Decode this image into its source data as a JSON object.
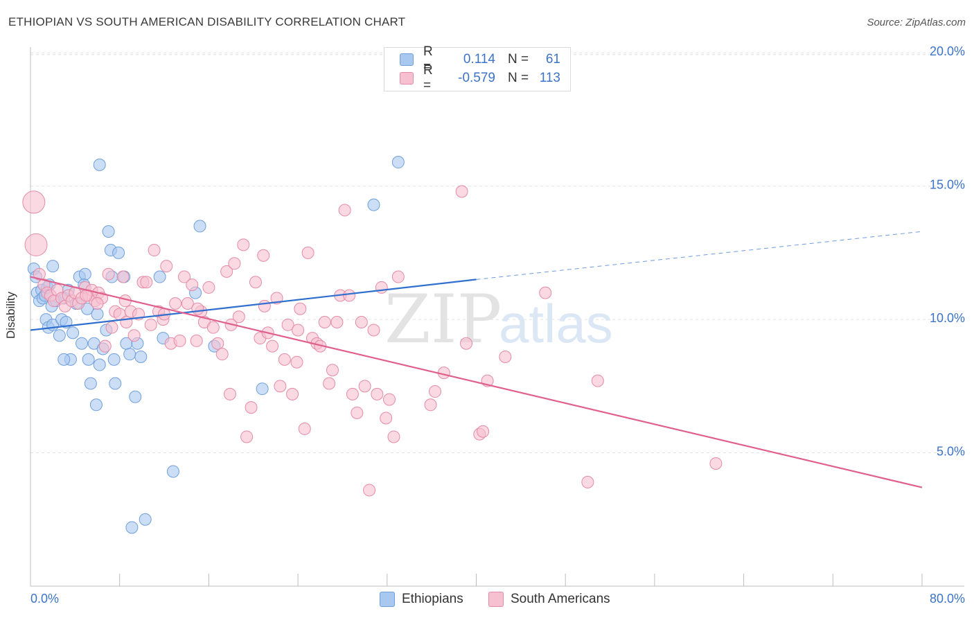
{
  "header": {
    "title": "ETHIOPIAN VS SOUTH AMERICAN DISABILITY CORRELATION CHART",
    "source": "Source: ZipAtlas.com"
  },
  "watermark": {
    "zip": "ZIP",
    "atlas": "atlas"
  },
  "legend": {
    "rows": [
      {
        "r_label": "R =",
        "r_value": "0.114",
        "n_label": "N =",
        "n_value": "61",
        "color": "#a9c8f0",
        "border": "#6e9fdc"
      },
      {
        "r_label": "R =",
        "r_value": "-0.579",
        "n_label": "N =",
        "n_value": "113",
        "color": "#f7c0d0",
        "border": "#e58aa6"
      }
    ]
  },
  "bottom_legend": {
    "items": [
      {
        "label": "Ethiopians",
        "color": "#a9c8f0",
        "border": "#6e9fdc"
      },
      {
        "label": "South Americans",
        "color": "#f7c0d0",
        "border": "#e58aa6"
      }
    ]
  },
  "chart_data": {
    "type": "scatter",
    "title": "ETHIOPIAN VS SOUTH AMERICAN DISABILITY CORRELATION CHART",
    "xlabel": "",
    "ylabel": "Disability",
    "xlim": [
      0,
      80
    ],
    "ylim": [
      0,
      20.5
    ],
    "x_tick_labels": [
      "0.0%",
      "80.0%"
    ],
    "y_ticks": [
      5,
      10,
      15,
      20
    ],
    "y_tick_labels": [
      "5.0%",
      "10.0%",
      "15.0%",
      "20.0%"
    ],
    "grid": true,
    "series": [
      {
        "name": "Ethiopians",
        "color": "#6e9fdc",
        "fill": "#a9c8f0",
        "trend": {
          "x0": 0,
          "y0": 9.6,
          "x1": 40,
          "y1": 11.5,
          "dash_to": 80,
          "dash_y": 13.3,
          "color": "#2f6fd0"
        },
        "points": [
          [
            0.3,
            11.9
          ],
          [
            0.5,
            11.6
          ],
          [
            0.6,
            11.0
          ],
          [
            0.8,
            10.7
          ],
          [
            1.0,
            11.1
          ],
          [
            1.1,
            10.8
          ],
          [
            1.3,
            10.9
          ],
          [
            1.5,
            11.2
          ],
          [
            1.7,
            11.3
          ],
          [
            1.9,
            10.5
          ],
          [
            1.4,
            10.0
          ],
          [
            1.6,
            9.7
          ],
          [
            2.0,
            9.8
          ],
          [
            2.3,
            10.7
          ],
          [
            2.6,
            9.4
          ],
          [
            2.8,
            10.0
          ],
          [
            3.0,
            10.8
          ],
          [
            3.2,
            9.9
          ],
          [
            3.4,
            11.1
          ],
          [
            3.6,
            8.5
          ],
          [
            3.8,
            9.5
          ],
          [
            4.1,
            10.6
          ],
          [
            4.4,
            11.6
          ],
          [
            4.6,
            9.1
          ],
          [
            4.9,
            11.7
          ],
          [
            5.1,
            10.4
          ],
          [
            5.4,
            7.6
          ],
          [
            5.7,
            9.1
          ],
          [
            5.9,
            6.8
          ],
          [
            6.2,
            8.3
          ],
          [
            6.5,
            8.9
          ],
          [
            6.8,
            9.6
          ],
          [
            7.0,
            13.3
          ],
          [
            7.2,
            12.6
          ],
          [
            7.5,
            8.5
          ],
          [
            7.6,
            7.6
          ],
          [
            7.9,
            12.5
          ],
          [
            8.4,
            11.6
          ],
          [
            8.6,
            9.1
          ],
          [
            8.9,
            8.7
          ],
          [
            9.1,
            2.2
          ],
          [
            9.4,
            7.1
          ],
          [
            9.6,
            9.1
          ],
          [
            9.9,
            8.6
          ],
          [
            10.3,
            2.5
          ],
          [
            11.6,
            11.6
          ],
          [
            11.9,
            9.3
          ],
          [
            12.8,
            4.3
          ],
          [
            14.8,
            11.0
          ],
          [
            15.2,
            13.5
          ],
          [
            16.5,
            9.0
          ],
          [
            20.8,
            7.4
          ],
          [
            30.8,
            14.3
          ],
          [
            33.0,
            15.9
          ],
          [
            6.2,
            15.8
          ],
          [
            3.0,
            8.5
          ],
          [
            5.2,
            8.5
          ],
          [
            2.0,
            12.0
          ],
          [
            4.8,
            11.3
          ],
          [
            7.3,
            11.6
          ],
          [
            6.0,
            10.2
          ]
        ]
      },
      {
        "name": "South Americans",
        "color": "#e58aa6",
        "fill": "#f7c0d0",
        "trend": {
          "x0": 0,
          "y0": 11.6,
          "x1": 80,
          "y1": 3.7,
          "color": "#e05f8c"
        },
        "big_points": [
          [
            0.3,
            14.4
          ],
          [
            0.5,
            12.8
          ]
        ],
        "points": [
          [
            0.8,
            11.7
          ],
          [
            1.2,
            11.3
          ],
          [
            1.5,
            11.0
          ],
          [
            1.8,
            10.9
          ],
          [
            2.1,
            10.7
          ],
          [
            2.4,
            11.1
          ],
          [
            2.8,
            10.8
          ],
          [
            3.1,
            10.5
          ],
          [
            3.4,
            10.9
          ],
          [
            3.7,
            10.7
          ],
          [
            4.0,
            11.0
          ],
          [
            4.3,
            10.6
          ],
          [
            4.6,
            10.8
          ],
          [
            4.9,
            11.2
          ],
          [
            5.2,
            10.9
          ],
          [
            5.5,
            11.1
          ],
          [
            5.8,
            10.7
          ],
          [
            6.1,
            11.0
          ],
          [
            6.4,
            10.8
          ],
          [
            6.7,
            9.0
          ],
          [
            7.0,
            11.7
          ],
          [
            7.3,
            9.7
          ],
          [
            7.6,
            10.3
          ],
          [
            8.0,
            10.2
          ],
          [
            8.3,
            11.6
          ],
          [
            8.6,
            9.9
          ],
          [
            9.0,
            10.3
          ],
          [
            9.3,
            9.4
          ],
          [
            9.7,
            10.2
          ],
          [
            10.1,
            11.4
          ],
          [
            10.4,
            11.4
          ],
          [
            10.8,
            9.8
          ],
          [
            11.1,
            12.6
          ],
          [
            11.5,
            10.3
          ],
          [
            11.9,
            10.0
          ],
          [
            12.2,
            12.0
          ],
          [
            12.6,
            9.1
          ],
          [
            13.0,
            10.6
          ],
          [
            13.4,
            9.2
          ],
          [
            13.8,
            11.6
          ],
          [
            14.1,
            10.6
          ],
          [
            14.5,
            11.3
          ],
          [
            14.9,
            9.2
          ],
          [
            15.3,
            10.3
          ],
          [
            15.6,
            9.9
          ],
          [
            16.0,
            11.2
          ],
          [
            16.4,
            9.7
          ],
          [
            16.8,
            9.1
          ],
          [
            17.2,
            8.7
          ],
          [
            17.6,
            11.8
          ],
          [
            17.9,
            7.2
          ],
          [
            18.3,
            12.1
          ],
          [
            18.7,
            10.1
          ],
          [
            19.1,
            12.8
          ],
          [
            19.4,
            5.6
          ],
          [
            19.8,
            6.7
          ],
          [
            20.2,
            11.4
          ],
          [
            20.6,
            9.3
          ],
          [
            20.9,
            12.4
          ],
          [
            21.3,
            9.5
          ],
          [
            21.7,
            9.0
          ],
          [
            22.1,
            10.8
          ],
          [
            22.4,
            7.5
          ],
          [
            22.8,
            8.5
          ],
          [
            23.1,
            9.8
          ],
          [
            23.5,
            7.2
          ],
          [
            23.9,
            8.4
          ],
          [
            24.2,
            10.4
          ],
          [
            24.6,
            5.9
          ],
          [
            24.9,
            12.5
          ],
          [
            25.3,
            9.3
          ],
          [
            25.7,
            9.1
          ],
          [
            26.0,
            9.0
          ],
          [
            26.4,
            9.9
          ],
          [
            26.8,
            7.6
          ],
          [
            27.1,
            8.1
          ],
          [
            27.5,
            9.9
          ],
          [
            27.8,
            10.9
          ],
          [
            28.2,
            14.1
          ],
          [
            28.6,
            10.9
          ],
          [
            28.9,
            7.2
          ],
          [
            29.3,
            6.5
          ],
          [
            29.7,
            9.9
          ],
          [
            30.0,
            7.5
          ],
          [
            30.4,
            3.6
          ],
          [
            30.8,
            9.6
          ],
          [
            31.1,
            7.2
          ],
          [
            31.5,
            11.2
          ],
          [
            31.9,
            6.3
          ],
          [
            32.2,
            7.0
          ],
          [
            32.6,
            5.6
          ],
          [
            33.0,
            11.6
          ],
          [
            35.9,
            6.8
          ],
          [
            36.3,
            7.3
          ],
          [
            37.1,
            8.0
          ],
          [
            38.7,
            14.8
          ],
          [
            39.1,
            9.1
          ],
          [
            40.3,
            5.7
          ],
          [
            40.6,
            5.8
          ],
          [
            41.0,
            7.7
          ],
          [
            42.6,
            8.6
          ],
          [
            46.2,
            11.0
          ],
          [
            50.0,
            3.9
          ],
          [
            50.9,
            7.7
          ],
          [
            61.5,
            4.6
          ],
          [
            5.0,
            10.9
          ],
          [
            6.0,
            10.6
          ],
          [
            8.5,
            10.7
          ],
          [
            12.0,
            10.2
          ],
          [
            15.0,
            10.4
          ],
          [
            18.0,
            9.8
          ],
          [
            21.0,
            10.5
          ],
          [
            24.0,
            9.6
          ]
        ]
      }
    ]
  }
}
